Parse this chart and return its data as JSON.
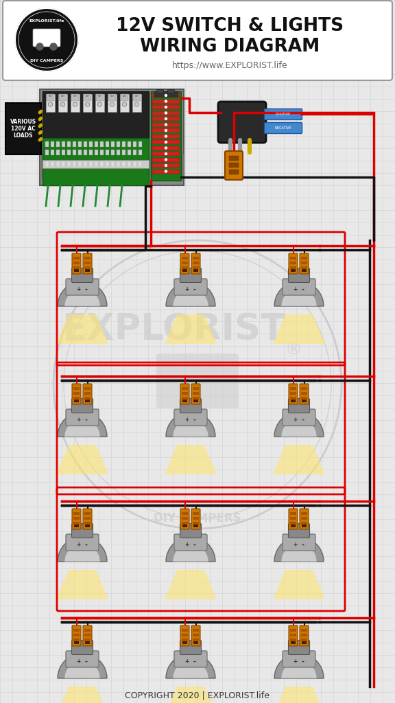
{
  "title_line1": "12V SWITCH & LIGHTS",
  "title_line2": "WIRING DIAGRAM",
  "subtitle": "https://www.EXPLORIST.life",
  "copyright": "COPYRIGHT 2020 | EXPLORIST.life",
  "bg_color": "#e8e8e8",
  "grid_color": "#d0d0d0",
  "wire_red": "#dd0000",
  "wire_black": "#111111",
  "light_glow": "#ffe566",
  "light_amber": "#ffcc44",
  "connector_orange": "#cc6600",
  "connector_dark": "#884400",
  "panel_gray": "#888888",
  "panel_dark": "#1a1a1a",
  "green_board": "#1a7a1a",
  "switch_dark": "#2a2a2a",
  "switch_blue": "#4488cc",
  "yellow_wire": "#ccaa00",
  "wm_color": "#cccccc",
  "header_border": "#aaaaaa"
}
